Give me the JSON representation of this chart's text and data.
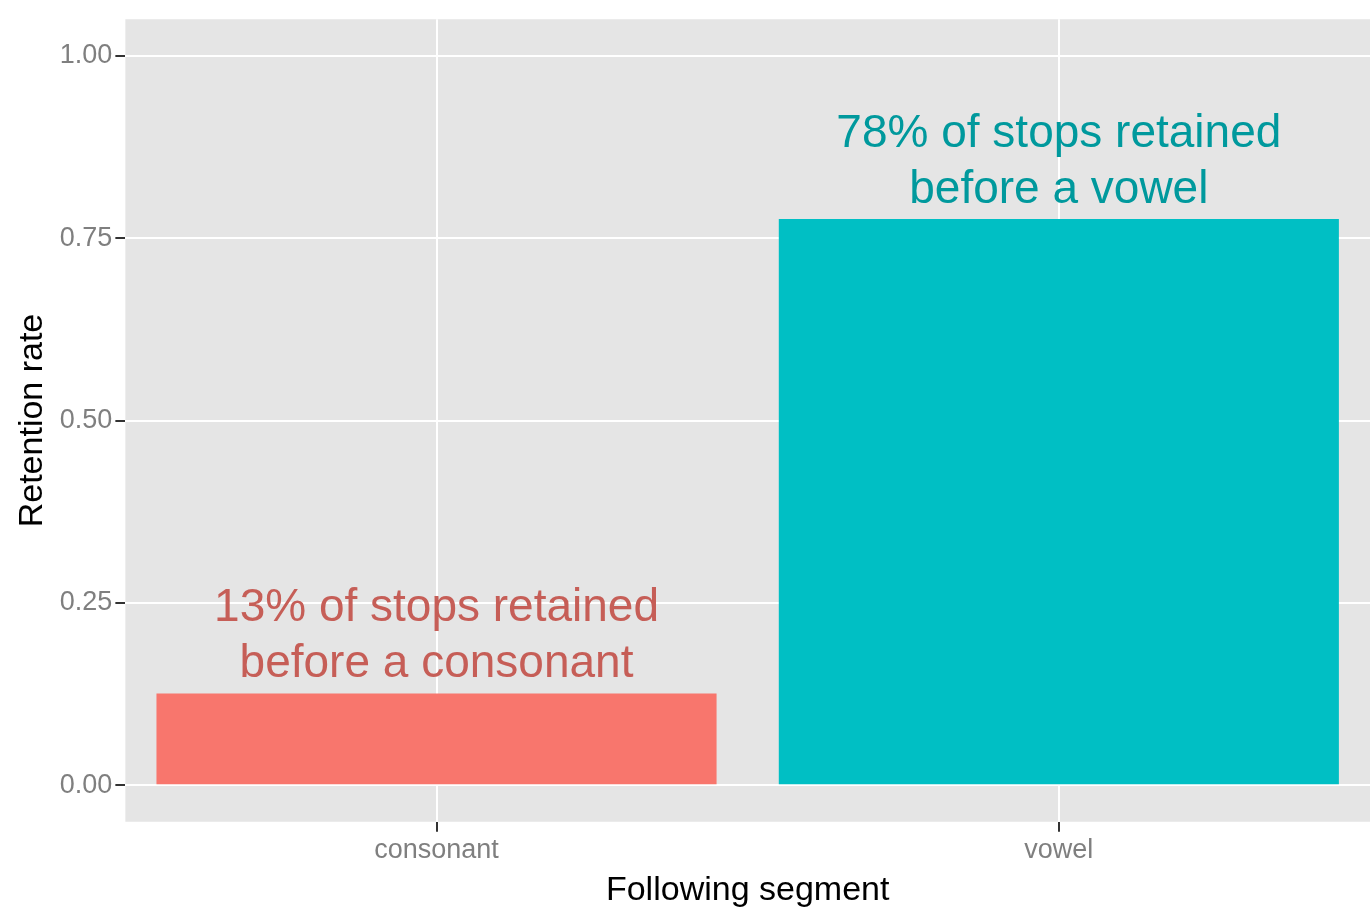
{
  "chart_data": {
    "type": "bar",
    "xlabel": "Following segment",
    "ylabel": "Retention rate",
    "categories": [
      "consonant",
      "vowel"
    ],
    "values": [
      0.126,
      0.776
    ],
    "colors": [
      "#f8766d",
      "#00bfc4"
    ],
    "ylim": [
      -0.05,
      1.05
    ],
    "yticks": [
      {
        "value": 0,
        "label": "0.00"
      },
      {
        "value": 0.25,
        "label": "0.25"
      },
      {
        "value": 0.5,
        "label": "0.50"
      },
      {
        "value": 0.75,
        "label": "0.75"
      },
      {
        "value": 1,
        "label": "1.00"
      }
    ],
    "grid": true,
    "legend": false,
    "annotations": [
      {
        "text": "13% of stops retained\nbefore a consonant",
        "x": "consonant",
        "y": 0.126
      },
      {
        "text": "78% of stops retained\nbefore a vowel",
        "x": "vowel",
        "y": 0.776
      }
    ]
  }
}
